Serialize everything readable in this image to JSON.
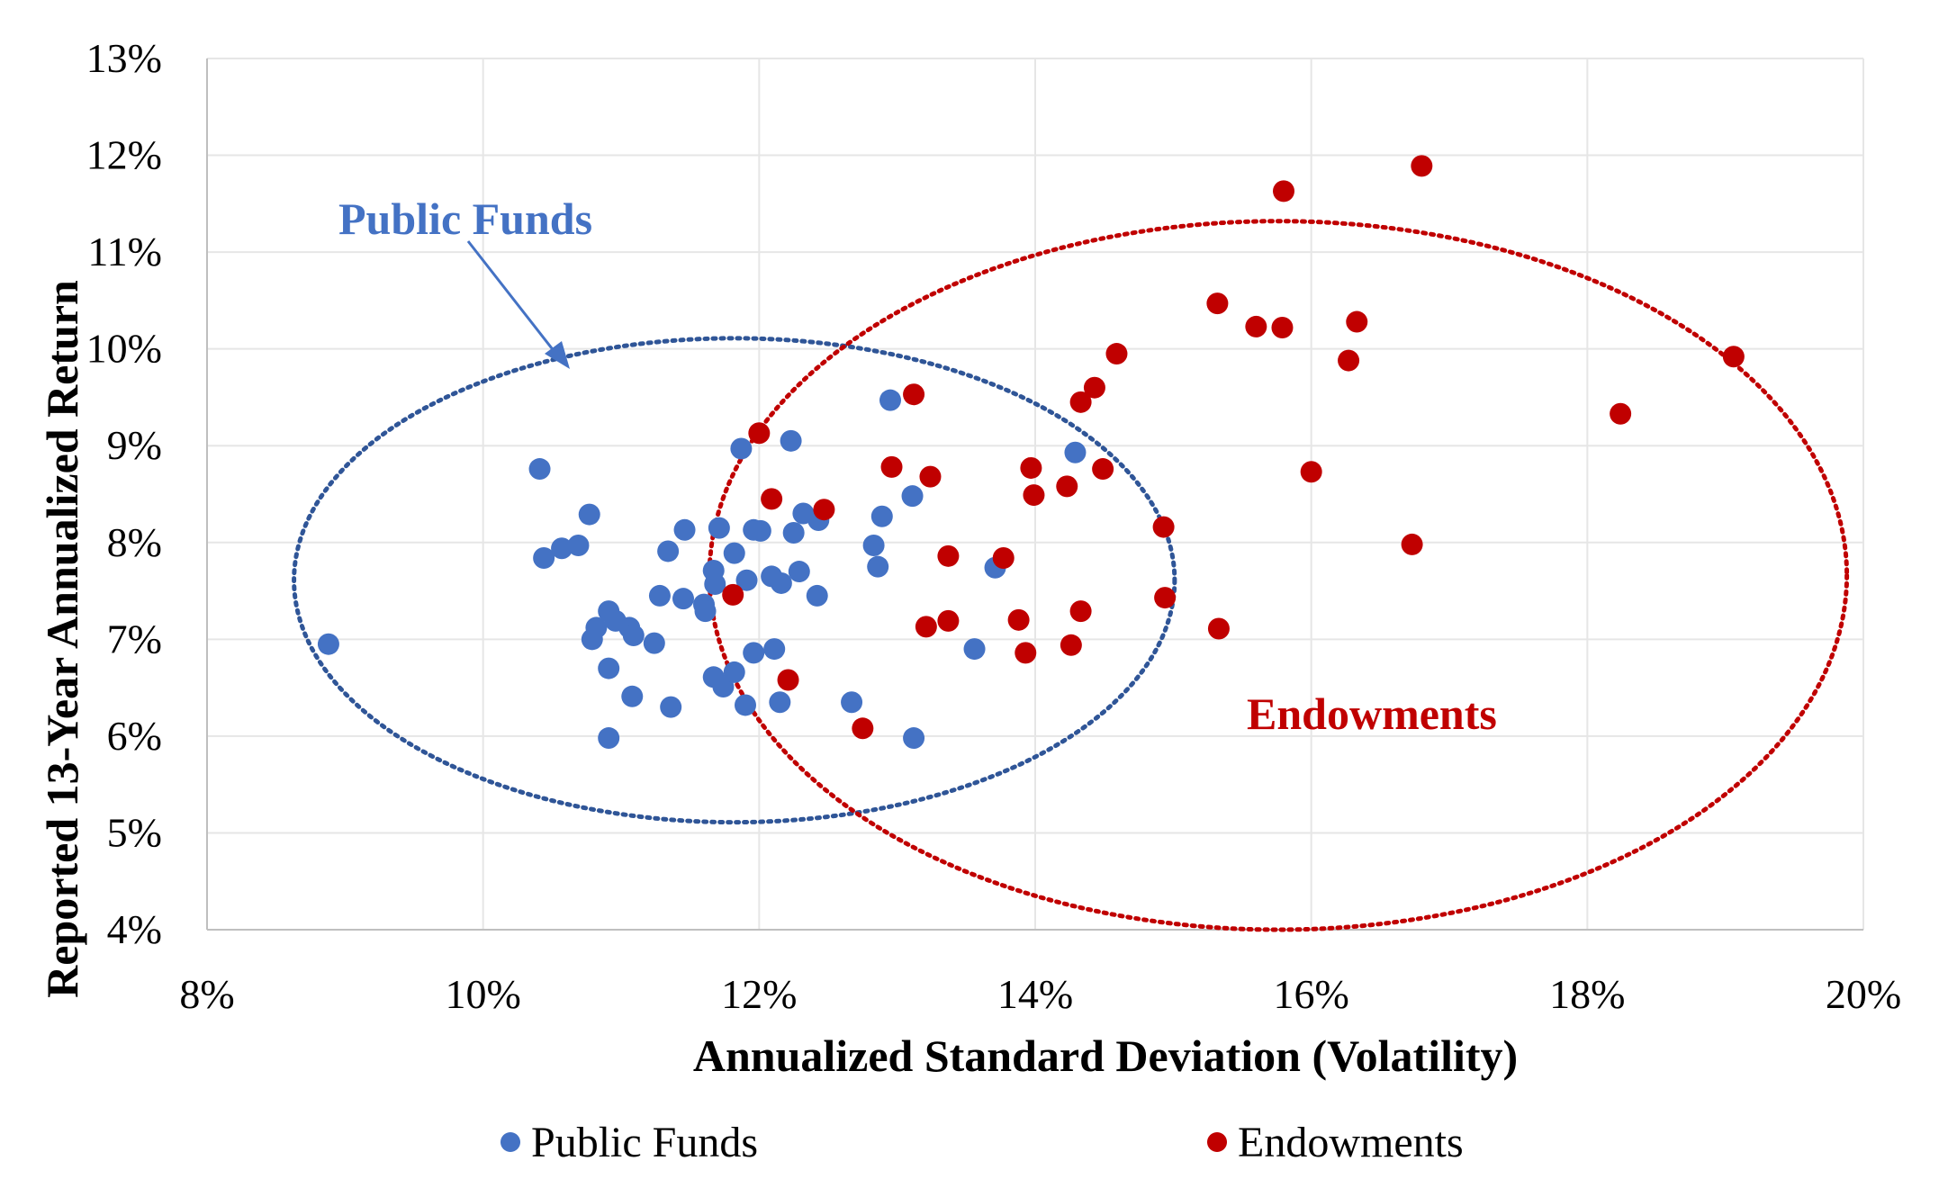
{
  "chart_data": {
    "type": "scatter",
    "title": "",
    "xlabel": "Annualized Standard Deviation (Volatility)",
    "ylabel": "Reported 13-Year Annualized Return",
    "xlim": [
      0.08,
      0.2
    ],
    "ylim": [
      0.04,
      0.13
    ],
    "x_ticks": [
      "8%",
      "10%",
      "12%",
      "14%",
      "16%",
      "18%",
      "20%"
    ],
    "y_ticks": [
      "4%",
      "5%",
      "6%",
      "7%",
      "8%",
      "9%",
      "10%",
      "11%",
      "12%",
      "13%"
    ],
    "grid": true,
    "legend_position": "bottom",
    "annotations": {
      "public_funds": "Public Funds",
      "endowments": "Endowments"
    },
    "series": [
      {
        "name": "Public Funds",
        "color": "#4472C4",
        "points": [
          [
            0.0888,
            0.0695
          ],
          [
            0.1041,
            0.0876
          ],
          [
            0.1044,
            0.0784
          ],
          [
            0.1057,
            0.0794
          ],
          [
            0.1069,
            0.0797
          ],
          [
            0.1077,
            0.0829
          ],
          [
            0.1079,
            0.07
          ],
          [
            0.1082,
            0.0712
          ],
          [
            0.1091,
            0.0729
          ],
          [
            0.1096,
            0.0719
          ],
          [
            0.1091,
            0.067
          ],
          [
            0.1091,
            0.0598
          ],
          [
            0.1106,
            0.0712
          ],
          [
            0.1109,
            0.0704
          ],
          [
            0.1108,
            0.0641
          ],
          [
            0.1124,
            0.0696
          ],
          [
            0.1128,
            0.0745
          ],
          [
            0.1134,
            0.0791
          ],
          [
            0.1136,
            0.063
          ],
          [
            0.1145,
            0.0742
          ],
          [
            0.1146,
            0.0813
          ],
          [
            0.116,
            0.0736
          ],
          [
            0.1161,
            0.0729
          ],
          [
            0.1167,
            0.0771
          ],
          [
            0.1168,
            0.0757
          ],
          [
            0.1167,
            0.0661
          ],
          [
            0.1171,
            0.0815
          ],
          [
            0.1174,
            0.0651
          ],
          [
            0.1182,
            0.0666
          ],
          [
            0.1182,
            0.0789
          ],
          [
            0.1187,
            0.0897
          ],
          [
            0.1191,
            0.0761
          ],
          [
            0.119,
            0.0632
          ],
          [
            0.1196,
            0.0686
          ],
          [
            0.1196,
            0.0813
          ],
          [
            0.1201,
            0.0812
          ],
          [
            0.1209,
            0.0765
          ],
          [
            0.1211,
            0.069
          ],
          [
            0.1216,
            0.0758
          ],
          [
            0.1215,
            0.0635
          ],
          [
            0.1223,
            0.0905
          ],
          [
            0.1225,
            0.081
          ],
          [
            0.1229,
            0.077
          ],
          [
            0.1232,
            0.083
          ],
          [
            0.1242,
            0.0745
          ],
          [
            0.1243,
            0.0823
          ],
          [
            0.1267,
            0.0635
          ],
          [
            0.1283,
            0.0797
          ],
          [
            0.1286,
            0.0775
          ],
          [
            0.1289,
            0.0827
          ],
          [
            0.1295,
            0.0947
          ],
          [
            0.1311,
            0.0848
          ],
          [
            0.1312,
            0.0598
          ],
          [
            0.1356,
            0.069
          ],
          [
            0.1371,
            0.0774
          ],
          [
            0.1429,
            0.0893
          ]
        ]
      },
      {
        "name": "Endowments",
        "color": "#C00000",
        "points": [
          [
            0.1181,
            0.0746
          ],
          [
            0.12,
            0.0913
          ],
          [
            0.1209,
            0.0845
          ],
          [
            0.1221,
            0.0658
          ],
          [
            0.1247,
            0.0834
          ],
          [
            0.1275,
            0.0608
          ],
          [
            0.1296,
            0.0878
          ],
          [
            0.1312,
            0.0953
          ],
          [
            0.1321,
            0.0713
          ],
          [
            0.1324,
            0.0868
          ],
          [
            0.1337,
            0.0786
          ],
          [
            0.1337,
            0.0719
          ],
          [
            0.1377,
            0.0784
          ],
          [
            0.1388,
            0.072
          ],
          [
            0.1393,
            0.0686
          ],
          [
            0.1397,
            0.0877
          ],
          [
            0.1399,
            0.0849
          ],
          [
            0.1423,
            0.0858
          ],
          [
            0.1426,
            0.0694
          ],
          [
            0.1433,
            0.0729
          ],
          [
            0.1433,
            0.0945
          ],
          [
            0.1443,
            0.096
          ],
          [
            0.1449,
            0.0876
          ],
          [
            0.1459,
            0.0995
          ],
          [
            0.1493,
            0.0816
          ],
          [
            0.1494,
            0.0743
          ],
          [
            0.1532,
            0.1047
          ],
          [
            0.1533,
            0.0711
          ],
          [
            0.156,
            0.1023
          ],
          [
            0.1579,
            0.1022
          ],
          [
            0.158,
            0.1163
          ],
          [
            0.16,
            0.0873
          ],
          [
            0.1627,
            0.0988
          ],
          [
            0.1633,
            0.1028
          ],
          [
            0.1673,
            0.0798
          ],
          [
            0.168,
            0.1189
          ],
          [
            0.1824,
            0.0933
          ],
          [
            0.1906,
            0.0992
          ]
        ]
      }
    ],
    "ellipses": [
      {
        "series": "Public Funds",
        "center": [
          0.1182,
          0.0761
        ],
        "radii": [
          0.0319,
          0.025
        ],
        "style": "dotted",
        "color": "#2F5597"
      },
      {
        "series": "Endowments",
        "center": [
          0.1576,
          0.0766
        ],
        "radii": [
          0.0412,
          0.0366
        ],
        "style": "dotted",
        "color": "#C00000"
      }
    ]
  }
}
